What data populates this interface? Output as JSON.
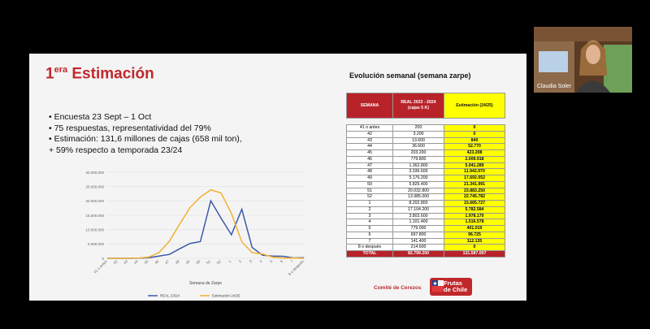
{
  "slide": {
    "title_prefix": "1",
    "title_sup": "era",
    "title_main": " Estimación",
    "bullets": [
      "•   Encuesta 23 Sept – 1 Oct",
      "•   75 respuestas, representatividad del 79%",
      "•   Estimación: 131,6 millones de cajas (658 mil ton),",
      "+ 59% respecto a temporada 23/24"
    ],
    "table_title": "Evolución semanal (semana zarpe)",
    "table": {
      "headers": [
        "SEMANA",
        "REAL 2023 - 2024 (cajas 5 K)",
        "Estimación (24/25)"
      ],
      "rows": [
        [
          "41 o antes",
          "200",
          "0"
        ],
        [
          "42",
          "3.200",
          "0"
        ],
        [
          "43",
          "13.600",
          "840"
        ],
        [
          "44",
          "36.600",
          "52.770"
        ],
        [
          "45",
          "203.200",
          "423.208"
        ],
        [
          "46",
          "779.800",
          "2.009.918"
        ],
        [
          "47",
          "1.362.800",
          "5.941.289"
        ],
        [
          "48",
          "3.336.600",
          "11.942.970"
        ],
        [
          "49",
          "5.176.200",
          "17.692.052"
        ],
        [
          "50",
          "5.825.400",
          "21.341.991"
        ],
        [
          "51",
          "20.032.800",
          "23.883.250"
        ],
        [
          "52",
          "13.985.000",
          "22.745.782"
        ],
        [
          "1",
          "8.202.800",
          "15.665.727"
        ],
        [
          "2",
          "17.104.200",
          "5.782.584"
        ],
        [
          "3",
          "3.802.600",
          "1.978.170"
        ],
        [
          "4",
          "1.101.400",
          "1.516.578"
        ],
        [
          "5",
          "779.000",
          "401.019"
        ],
        [
          "6",
          "697.800",
          "96.725"
        ],
        [
          "7",
          "141.400",
          "112.135"
        ],
        [
          "8 o después",
          "214.600",
          "0"
        ]
      ],
      "total": [
        "TOTAL",
        "82.799.200",
        "131.587.007"
      ]
    },
    "logo_text": "Comité de Cerezos",
    "logo2_line1": "Frutas",
    "logo2_line2": "de Chile"
  },
  "participant": {
    "name": "Claudia Soler"
  },
  "colors": {
    "accent": "#c0282c",
    "real_line": "#3b5aa8",
    "est_line": "#f2b233"
  },
  "chart_data": {
    "type": "line",
    "title": "",
    "xlabel": "Semana de Zarpe",
    "ylabel": "",
    "ylim": [
      0,
      30000000
    ],
    "yticks": [
      "0",
      "5.000.000",
      "10.000.000",
      "15.000.000",
      "20.000.000",
      "25.000.000",
      "30.000.000"
    ],
    "categories": [
      "41 o antes",
      "42",
      "43",
      "44",
      "45",
      "46",
      "47",
      "48",
      "49",
      "50",
      "51",
      "52",
      "1",
      "2",
      "3",
      "4",
      "5",
      "6",
      "7",
      "8 o después"
    ],
    "series": [
      {
        "name": "REAL 23/24",
        "color": "#3b5aa8",
        "values": [
          200,
          3200,
          13600,
          36600,
          203200,
          779800,
          1362800,
          3336600,
          5176200,
          5825400,
          20032800,
          13985000,
          8202800,
          17104200,
          3802600,
          1101400,
          779000,
          697800,
          141400,
          214600
        ]
      },
      {
        "name": "Estimación 24/25",
        "color": "#f2b233",
        "values": [
          0,
          0,
          840,
          52770,
          423208,
          2009918,
          5941289,
          11942970,
          17692052,
          21341991,
          23883250,
          22745782,
          15665727,
          5782584,
          1978170,
          1516578,
          401019,
          96725,
          112135,
          0
        ]
      }
    ]
  }
}
